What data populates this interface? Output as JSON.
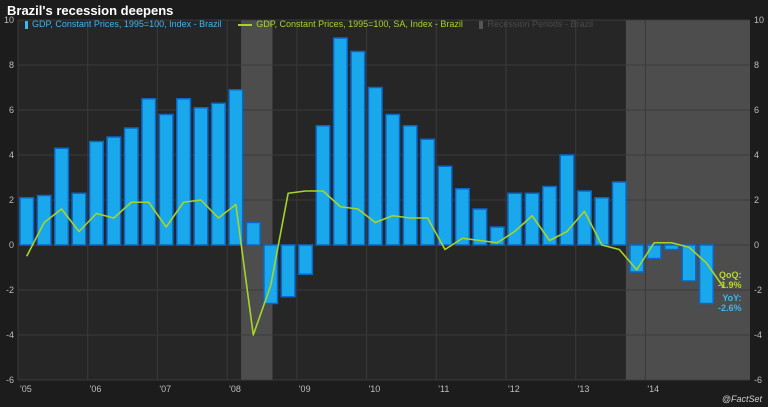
{
  "title": "Brazil's recession deepens",
  "legend": {
    "bar": "GDP, Constant Prices, 1995=100, Index - Brazil",
    "line": "GDP, Constant Prices, 1995=100, SA, Index - Brazil",
    "recession": "Recession Periods - Brazil"
  },
  "annotations": {
    "qoq_label": "QoQ:",
    "qoq_value": "-1.9%",
    "yoy_label": "YoY:",
    "yoy_value": "-2.6%"
  },
  "source": "@FactSet",
  "colors": {
    "bar_fill": "#1aa8ec",
    "bar_edge": "#0a66c8",
    "line": "#a6d42a",
    "recession": "#555555",
    "grid": "#3a3a3a",
    "axis_text": "#bdbdbd"
  },
  "chart_data": {
    "type": "bar",
    "grid": true,
    "ylim": [
      -6,
      10
    ],
    "yticks": [
      -6,
      -4,
      -2,
      0,
      2,
      4,
      6,
      8,
      10
    ],
    "xlim": [
      2005.0,
      2015.5
    ],
    "xticks": [
      {
        "year": 2005,
        "label": "'05"
      },
      {
        "year": 2006,
        "label": "'06"
      },
      {
        "year": 2007,
        "label": "'07"
      },
      {
        "year": 2008,
        "label": "'08"
      },
      {
        "year": 2009,
        "label": "'09"
      },
      {
        "year": 2010,
        "label": "'10"
      },
      {
        "year": 2011,
        "label": "'11"
      },
      {
        "year": 2012,
        "label": "'12"
      },
      {
        "year": 2013,
        "label": "'13"
      },
      {
        "year": 2014,
        "label": "'14"
      }
    ],
    "x": [
      "2005Q1",
      "2005Q2",
      "2005Q3",
      "2005Q4",
      "2006Q1",
      "2006Q2",
      "2006Q3",
      "2006Q4",
      "2007Q1",
      "2007Q2",
      "2007Q3",
      "2007Q4",
      "2008Q1",
      "2008Q2",
      "2008Q3",
      "2008Q4",
      "2009Q1",
      "2009Q2",
      "2009Q3",
      "2009Q4",
      "2010Q1",
      "2010Q2",
      "2010Q3",
      "2010Q4",
      "2011Q1",
      "2011Q2",
      "2011Q3",
      "2011Q4",
      "2012Q1",
      "2012Q2",
      "2012Q3",
      "2012Q4",
      "2013Q1",
      "2013Q2",
      "2013Q3",
      "2013Q4",
      "2014Q1",
      "2014Q2",
      "2014Q3",
      "2014Q4",
      "2015Q1"
    ],
    "recessions": [
      [
        2008.2,
        2008.65
      ],
      [
        2013.72,
        2015.5
      ]
    ],
    "series": [
      {
        "kind": "bar",
        "values": [
          2.1,
          2.2,
          4.3,
          2.3,
          4.6,
          4.8,
          5.2,
          6.5,
          5.8,
          6.5,
          6.1,
          6.3,
          6.9,
          1.0,
          -2.6,
          -2.3,
          -1.3,
          5.3,
          9.2,
          8.6,
          7.0,
          5.8,
          5.3,
          4.7,
          3.5,
          2.5,
          1.6,
          0.8,
          2.3,
          2.3,
          2.6,
          4.0,
          2.4,
          2.1,
          2.8,
          -1.2,
          -0.6,
          -0.2,
          -1.6,
          -2.6,
          null
        ]
      },
      {
        "kind": "line",
        "values": [
          -0.5,
          1.0,
          1.6,
          0.6,
          1.4,
          1.2,
          1.9,
          1.9,
          0.8,
          1.9,
          2.0,
          1.2,
          1.8,
          -4.0,
          -1.8,
          2.3,
          2.4,
          2.4,
          1.7,
          1.6,
          1.0,
          1.3,
          1.2,
          1.2,
          -0.2,
          0.3,
          0.2,
          0.1,
          0.6,
          1.3,
          0.2,
          0.6,
          1.5,
          0.0,
          -0.2,
          -1.1,
          0.1,
          0.1,
          -0.1,
          -0.8,
          -1.9
        ]
      }
    ]
  }
}
